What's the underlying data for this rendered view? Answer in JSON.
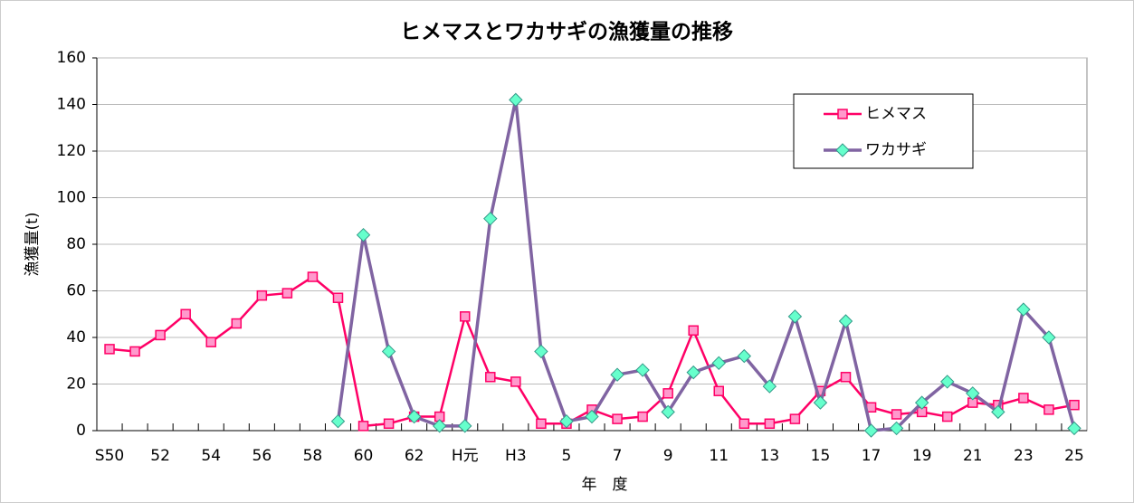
{
  "chart_data": {
    "type": "line",
    "title": "ヒメマスとワカサギの漁獲量の推移",
    "y_label": "漁獲量(t)",
    "x_label": "年　度",
    "categories": [
      "S50",
      null,
      "52",
      null,
      "54",
      null,
      "56",
      null,
      "58",
      null,
      "60",
      null,
      "62",
      null,
      "H元",
      null,
      "H3",
      null,
      "5",
      null,
      "7",
      null,
      "9",
      null,
      "11",
      null,
      "13",
      null,
      "15",
      null,
      "17",
      null,
      "19",
      null,
      "21",
      null,
      "23",
      null,
      "25"
    ],
    "series": [
      {
        "name": "ヒメマス",
        "color": "#ff0066",
        "marker": "square",
        "marker_fill": "#ff99cc",
        "values": [
          35,
          34,
          41,
          50,
          38,
          46,
          58,
          59,
          66,
          57,
          2,
          3,
          6,
          6,
          49,
          23,
          21,
          3,
          3,
          9,
          5,
          6,
          16,
          43,
          17,
          3,
          3,
          5,
          17,
          23,
          10,
          7,
          8,
          6,
          12,
          11,
          14,
          9,
          11
        ]
      },
      {
        "name": "ワカサギ",
        "color": "#8064a2",
        "marker": "diamond",
        "marker_fill": "#66ffcc",
        "values": [
          null,
          null,
          null,
          null,
          null,
          null,
          null,
          null,
          null,
          4,
          84,
          34,
          6,
          2,
          2,
          91,
          142,
          34,
          4,
          6,
          24,
          26,
          8,
          25,
          29,
          32,
          19,
          49,
          12,
          47,
          0,
          1,
          12,
          21,
          16,
          8,
          52,
          40,
          1
        ]
      }
    ],
    "ylim": [
      0,
      160
    ],
    "yticks": [
      0,
      20,
      40,
      60,
      80,
      100,
      120,
      140,
      160
    ],
    "grid": true
  }
}
